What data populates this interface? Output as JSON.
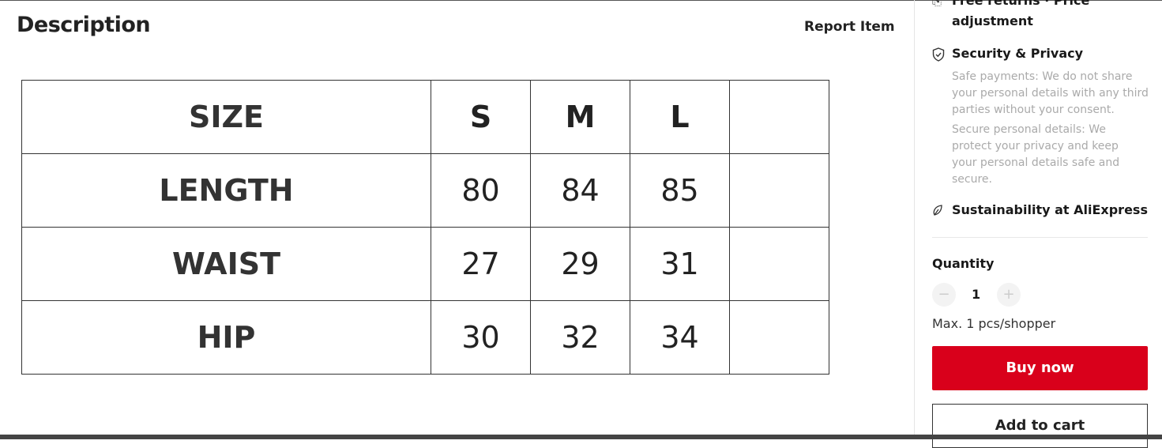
{
  "description": {
    "title": "Description",
    "report_label": "Report Item"
  },
  "size_table": {
    "header": [
      "SIZE",
      "S",
      "M",
      "L",
      ""
    ],
    "rows": [
      [
        "LENGTH",
        "80",
        "84",
        "85",
        ""
      ],
      [
        "WAIST",
        "27",
        "29",
        "31",
        ""
      ],
      [
        "HIP",
        "30",
        "32",
        "34",
        ""
      ]
    ]
  },
  "sidebar": {
    "returns_line1": "Free returns · Price",
    "returns_line2": "adjustment",
    "security_title": "Security & Privacy",
    "security_text1": "Safe payments: We do not share your personal details with any third parties without your consent.",
    "security_text2": "Secure personal details: We protect your privacy and keep your personal details safe and secure.",
    "sustainability": "Sustainability at AliExpress",
    "quantity_label": "Quantity",
    "quantity_value": "1",
    "max_note": "Max. 1 pcs/shopper",
    "buy_now": "Buy now",
    "add_to_cart": "Add to cart"
  },
  "colors": {
    "accent": "#d9001b"
  }
}
